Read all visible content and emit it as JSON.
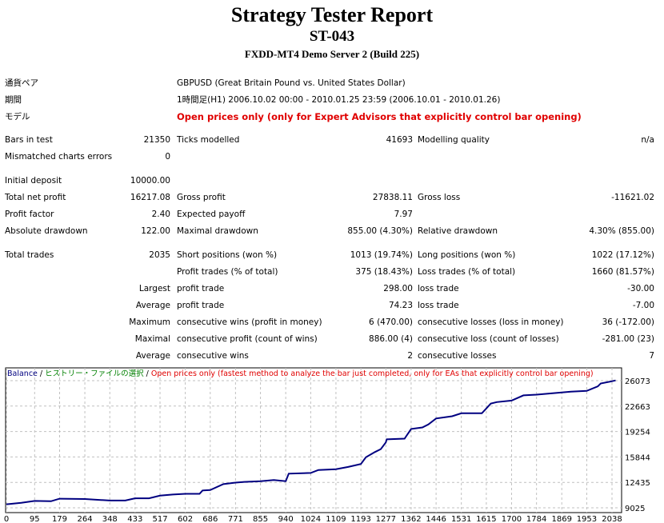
{
  "header": {
    "title": "Strategy Tester Report",
    "name": "ST-043",
    "server": "FXDD-MT4 Demo Server 2 (Build 225)"
  },
  "info": [
    {
      "label": "通貨ペア",
      "value": "GBPUSD (Great Britain Pound vs. United States Dollar)"
    },
    {
      "label": "期間",
      "value": "1時間足(H1) 2006.10.02 00:00 - 2010.01.25 23:59 (2006.10.01 - 2010.01.26)"
    },
    {
      "label": "モデル",
      "value": "Open prices only (only for Expert Advisors that explicitly control bar opening)"
    }
  ],
  "stats": [
    {
      "row": 0,
      "cells": [
        [
          "Bars in test",
          "21350"
        ],
        [
          "Ticks modelled",
          "41693"
        ],
        [
          "Modelling quality",
          "n/a"
        ]
      ]
    },
    {
      "row": 1,
      "cells": [
        [
          "Mismatched charts errors",
          "0"
        ]
      ]
    },
    {
      "row": 2,
      "cells": [
        [
          "Initial deposit",
          "10000.00"
        ]
      ]
    },
    {
      "row": 3,
      "cells": [
        [
          "Total net profit",
          "16217.08"
        ],
        [
          "Gross profit",
          "27838.11"
        ],
        [
          "Gross loss",
          "-11621.02"
        ]
      ]
    },
    {
      "row": 4,
      "cells": [
        [
          "Profit factor",
          "2.40"
        ],
        [
          "Expected payoff",
          "7.97"
        ]
      ]
    },
    {
      "row": 5,
      "cells": [
        [
          "Absolute drawdown",
          "122.00"
        ],
        [
          "Maximal drawdown",
          "855.00 (4.30%)"
        ],
        [
          "Relative drawdown",
          "4.30% (855.00)"
        ]
      ]
    },
    {
      "row": 6,
      "cells": [
        [
          "Total trades",
          "2035"
        ],
        [
          "Short positions (won %)",
          "1013 (19.74%)"
        ],
        [
          "Long positions (won %)",
          "1022 (17.12%)"
        ]
      ]
    },
    {
      "row": 7,
      "cells": [
        [
          "",
          ""
        ],
        [
          "Profit trades (% of total)",
          "375 (18.43%)"
        ],
        [
          "Loss trades (% of total)",
          "1660 (81.57%)"
        ]
      ]
    },
    {
      "row": 8,
      "cells": [
        [
          "",
          "Largest"
        ],
        [
          "profit trade",
          "298.00"
        ],
        [
          "loss trade",
          "-30.00"
        ]
      ]
    },
    {
      "row": 9,
      "cells": [
        [
          "",
          "Average"
        ],
        [
          "profit trade",
          "74.23"
        ],
        [
          "loss trade",
          "-7.00"
        ]
      ]
    },
    {
      "row": 10,
      "cells": [
        [
          "",
          "Maximum"
        ],
        [
          "consecutive wins (profit in money)",
          "6 (470.00)"
        ],
        [
          "consecutive losses (loss in money)",
          "36 (-172.00)"
        ]
      ]
    },
    {
      "row": 11,
      "cells": [
        [
          "",
          "Maximal"
        ],
        [
          "consecutive profit (count of wins)",
          "886.00 (4)"
        ],
        [
          "consecutive loss (count of losses)",
          "-281.00 (23)"
        ]
      ]
    },
    {
      "row": 12,
      "cells": [
        [
          "",
          "Average"
        ],
        [
          "consecutive wins",
          "2"
        ],
        [
          "consecutive losses",
          "7"
        ]
      ]
    }
  ],
  "chart_data": {
    "type": "line",
    "legend": [
      {
        "text": "Balance",
        "color": "#000080"
      },
      {
        "text": " / ",
        "color": "#000000"
      },
      {
        "text": "ヒストリー・ファイルの選択",
        "color": "#008000"
      },
      {
        "text": " / ",
        "color": "#000000"
      },
      {
        "text": "Open prices only (fastest method to analyze the bar just completed, only for EAs that explicitly control bar opening)",
        "color": "#e00000"
      }
    ],
    "x_ticks": [
      0,
      95,
      179,
      264,
      348,
      433,
      517,
      602,
      686,
      771,
      855,
      940,
      1024,
      1109,
      1193,
      1277,
      1362,
      1446,
      1531,
      1615,
      1700,
      1784,
      1869,
      1953,
      2038
    ],
    "y_ticks": [
      9025,
      12435,
      15844,
      19254,
      22663,
      26073
    ],
    "xlim": [
      0,
      2060
    ],
    "ylim": [
      8600,
      27100
    ],
    "series": [
      {
        "name": "Balance",
        "color": "#000080",
        "x": [
          0,
          50,
          95,
          150,
          179,
          264,
          348,
          400,
          433,
          480,
          517,
          560,
          602,
          650,
          660,
          686,
          730,
          771,
          800,
          855,
          900,
          940,
          950,
          1024,
          1050,
          1109,
          1150,
          1193,
          1210,
          1240,
          1260,
          1277,
          1280,
          1340,
          1362,
          1400,
          1420,
          1446,
          1500,
          1531,
          1600,
          1630,
          1650,
          1700,
          1740,
          1784,
          1869,
          1900,
          1953,
          1990,
          2000,
          2038,
          2050
        ],
        "y": [
          9500,
          9700,
          9950,
          9900,
          10250,
          10200,
          10000,
          10000,
          10300,
          10300,
          10650,
          10800,
          10900,
          10900,
          11350,
          11400,
          12200,
          12400,
          12500,
          12600,
          12750,
          12600,
          13600,
          13700,
          14100,
          14200,
          14500,
          14900,
          15800,
          16500,
          16900,
          17800,
          18200,
          18300,
          19600,
          19800,
          20200,
          21000,
          21300,
          21700,
          21700,
          23000,
          23200,
          23400,
          24100,
          24200,
          24500,
          24600,
          24700,
          25300,
          25700,
          26000,
          26100
        ]
      }
    ]
  }
}
